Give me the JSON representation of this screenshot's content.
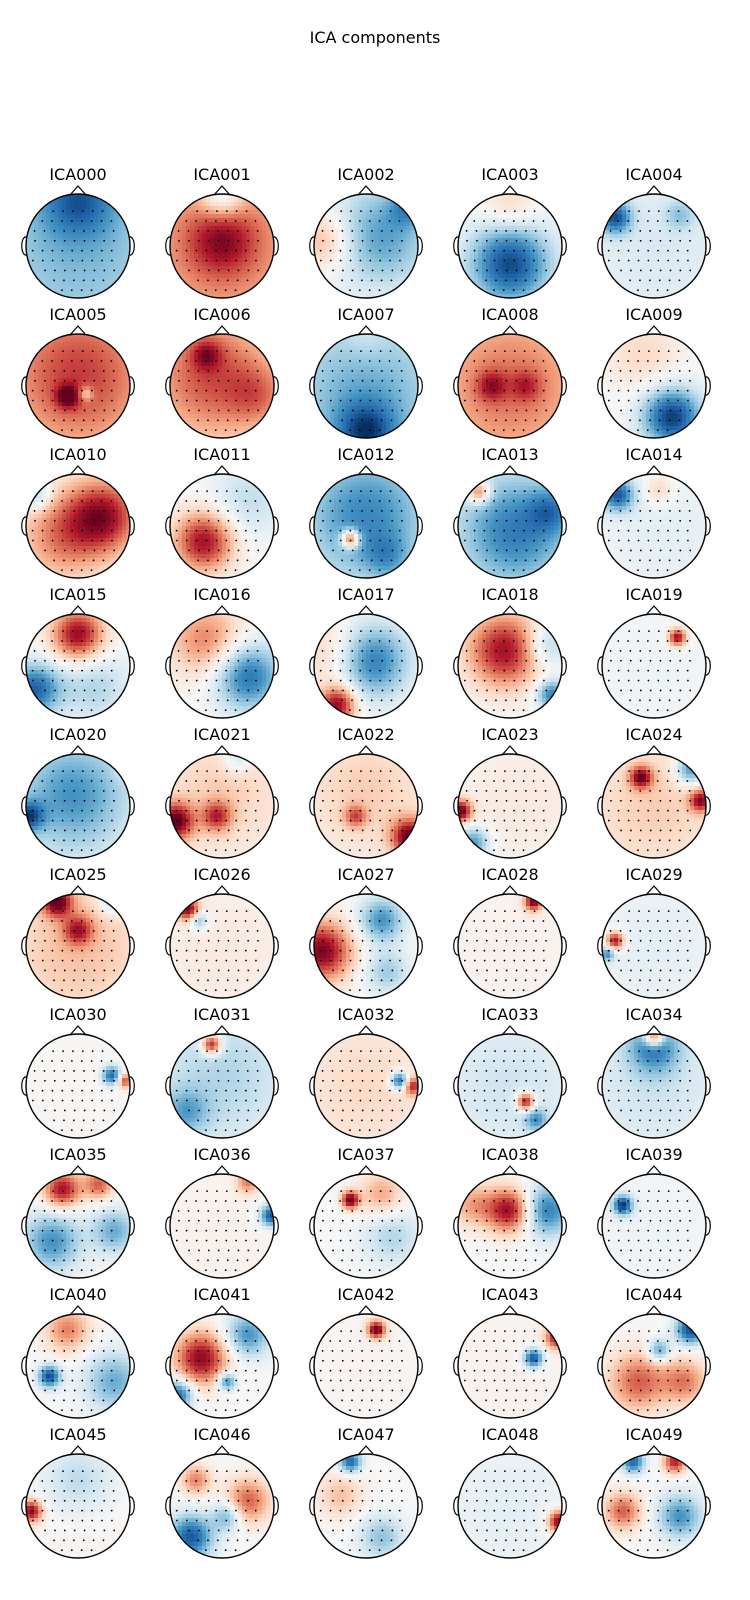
{
  "title": "ICA components",
  "colormap": {
    "negative": "#08306b",
    "neutral": "#f7f7f7",
    "positive": "#67000d",
    "outline": "#000000"
  },
  "components": [
    {
      "label": "ICA000",
      "blobs": [
        {
          "u": 0,
          "v": 0,
          "s": 1.6,
          "a": -0.45
        },
        {
          "u": 0,
          "v": 0.9,
          "s": 0.5,
          "a": -0.5
        }
      ]
    },
    {
      "label": "ICA001",
      "blobs": [
        {
          "u": 0,
          "v": 0,
          "s": 1.6,
          "a": 0.5
        },
        {
          "u": 0,
          "v": 0.1,
          "s": 0.45,
          "a": 0.45
        },
        {
          "u": 0,
          "v": 0.95,
          "s": 0.3,
          "a": -0.5
        }
      ]
    },
    {
      "label": "ICA002",
      "blobs": [
        {
          "u": 0.3,
          "v": 0.2,
          "s": 0.7,
          "a": -0.55
        },
        {
          "u": 0.8,
          "v": 0.75,
          "s": 0.25,
          "a": -0.4
        },
        {
          "u": -0.8,
          "v": 0.1,
          "s": 0.4,
          "a": 0.4
        }
      ]
    },
    {
      "label": "ICA003",
      "blobs": [
        {
          "u": 0,
          "v": -0.35,
          "s": 0.55,
          "a": -0.9
        },
        {
          "u": 0,
          "v": 0.75,
          "s": 0.35,
          "a": 0.25
        }
      ]
    },
    {
      "label": "ICA004",
      "blobs": [
        {
          "u": -0.75,
          "v": 0.55,
          "s": 0.22,
          "a": -0.8
        },
        {
          "u": 0.1,
          "v": 0,
          "s": 1.2,
          "a": -0.15
        },
        {
          "u": 0.5,
          "v": 0.6,
          "s": 0.2,
          "a": -0.3
        }
      ]
    },
    {
      "label": "ICA005",
      "blobs": [
        {
          "u": 0,
          "v": 0.2,
          "s": 1.1,
          "a": 0.7
        },
        {
          "u": -0.2,
          "v": -0.2,
          "s": 0.15,
          "a": 0.6
        },
        {
          "u": 0.15,
          "v": -0.15,
          "s": 0.1,
          "a": -0.4
        }
      ]
    },
    {
      "label": "ICA006",
      "blobs": [
        {
          "u": -0.2,
          "v": 0.2,
          "s": 0.9,
          "a": 0.65
        },
        {
          "u": 0.7,
          "v": -0.2,
          "s": 0.4,
          "a": 0.3
        },
        {
          "u": -0.3,
          "v": 0.6,
          "s": 0.2,
          "a": 0.4
        }
      ]
    },
    {
      "label": "ICA007",
      "blobs": [
        {
          "u": 0,
          "v": -0.2,
          "s": 1.2,
          "a": -0.5
        },
        {
          "u": 0,
          "v": -0.9,
          "s": 0.4,
          "a": -0.6
        },
        {
          "u": 0,
          "v": 0.9,
          "s": 0.3,
          "a": 0.1
        }
      ]
    },
    {
      "label": "ICA008",
      "blobs": [
        {
          "u": 0,
          "v": 0,
          "s": 1.2,
          "a": 0.55
        },
        {
          "u": -0.35,
          "v": 0,
          "s": 0.2,
          "a": 0.4
        },
        {
          "u": 0.3,
          "v": 0,
          "s": 0.2,
          "a": 0.3
        }
      ]
    },
    {
      "label": "ICA009",
      "blobs": [
        {
          "u": 0.35,
          "v": -0.6,
          "s": 0.4,
          "a": -0.95
        },
        {
          "u": -0.2,
          "v": 0.6,
          "s": 0.5,
          "a": 0.2
        }
      ]
    },
    {
      "label": "ICA010",
      "blobs": [
        {
          "u": 0.5,
          "v": 0.2,
          "s": 0.5,
          "a": 0.8
        },
        {
          "u": -0.3,
          "v": -0.2,
          "s": 0.6,
          "a": 0.5
        },
        {
          "u": -0.8,
          "v": 0.6,
          "s": 0.2,
          "a": -0.4
        }
      ]
    },
    {
      "label": "ICA011",
      "blobs": [
        {
          "u": -0.35,
          "v": -0.3,
          "s": 0.4,
          "a": 0.85
        },
        {
          "u": 0.5,
          "v": 0.5,
          "s": 0.5,
          "a": -0.25
        }
      ]
    },
    {
      "label": "ICA012",
      "blobs": [
        {
          "u": 0,
          "v": 0.2,
          "s": 0.9,
          "a": -0.65
        },
        {
          "u": -0.3,
          "v": -0.25,
          "s": 0.12,
          "a": 1.0
        },
        {
          "u": 0.4,
          "v": -0.6,
          "s": 0.3,
          "a": -0.3
        }
      ]
    },
    {
      "label": "ICA013",
      "blobs": [
        {
          "u": 0.1,
          "v": -0.1,
          "s": 0.8,
          "a": -0.7
        },
        {
          "u": -0.6,
          "v": 0.65,
          "s": 0.15,
          "a": 0.7
        },
        {
          "u": 0.8,
          "v": 0.3,
          "s": 0.3,
          "a": -0.4
        }
      ]
    },
    {
      "label": "ICA014",
      "blobs": [
        {
          "u": -0.7,
          "v": 0.6,
          "s": 0.22,
          "a": -0.8
        },
        {
          "u": 0.2,
          "v": -0.1,
          "s": 1.0,
          "a": -0.1
        },
        {
          "u": 0.1,
          "v": 0.7,
          "s": 0.2,
          "a": 0.25
        }
      ]
    },
    {
      "label": "ICA015",
      "blobs": [
        {
          "u": 0,
          "v": 0.6,
          "s": 0.35,
          "a": 0.9
        },
        {
          "u": -0.85,
          "v": -0.45,
          "s": 0.35,
          "a": -0.8
        },
        {
          "u": 0.3,
          "v": -0.4,
          "s": 0.5,
          "a": -0.3
        }
      ]
    },
    {
      "label": "ICA016",
      "blobs": [
        {
          "u": 0.5,
          "v": -0.2,
          "s": 0.45,
          "a": -0.75
        },
        {
          "u": -0.3,
          "v": 0.5,
          "s": 0.5,
          "a": 0.5
        }
      ]
    },
    {
      "label": "ICA017",
      "blobs": [
        {
          "u": 0.1,
          "v": 0.1,
          "s": 0.5,
          "a": -0.75
        },
        {
          "u": -0.55,
          "v": -0.75,
          "s": 0.25,
          "a": 0.9
        },
        {
          "u": -0.6,
          "v": 0.2,
          "s": 0.5,
          "a": 0.3
        }
      ]
    },
    {
      "label": "ICA018",
      "blobs": [
        {
          "u": -0.1,
          "v": 0.3,
          "s": 0.5,
          "a": 0.85
        },
        {
          "u": 0.8,
          "v": -0.55,
          "s": 0.2,
          "a": -0.7
        },
        {
          "u": 0.7,
          "v": 0.4,
          "s": 0.3,
          "a": -0.4
        }
      ]
    },
    {
      "label": "ICA019",
      "blobs": [
        {
          "u": 0.45,
          "v": 0.55,
          "s": 0.12,
          "a": 0.9
        },
        {
          "u": 0,
          "v": 0,
          "s": 1.0,
          "a": -0.05
        }
      ]
    },
    {
      "label": "ICA020",
      "blobs": [
        {
          "u": -0.1,
          "v": 0.2,
          "s": 0.8,
          "a": -0.6
        },
        {
          "u": -0.95,
          "v": -0.2,
          "s": 0.2,
          "a": -0.7
        },
        {
          "u": 0.9,
          "v": 0.75,
          "s": 0.15,
          "a": 0.2
        }
      ]
    },
    {
      "label": "ICA021",
      "blobs": [
        {
          "u": -0.9,
          "v": -0.3,
          "s": 0.25,
          "a": 0.95
        },
        {
          "u": -0.1,
          "v": -0.2,
          "s": 0.2,
          "a": 0.6
        },
        {
          "u": 0,
          "v": 0.3,
          "s": 0.9,
          "a": 0.25
        },
        {
          "u": 0.3,
          "v": 0.9,
          "s": 0.2,
          "a": -0.3
        }
      ]
    },
    {
      "label": "ICA022",
      "blobs": [
        {
          "u": 0.85,
          "v": -0.6,
          "s": 0.25,
          "a": 0.95
        },
        {
          "u": -0.2,
          "v": -0.2,
          "s": 0.15,
          "a": 0.5
        },
        {
          "u": 0,
          "v": 0.3,
          "s": 0.9,
          "a": 0.25
        }
      ]
    },
    {
      "label": "ICA023",
      "blobs": [
        {
          "u": -0.95,
          "v": -0.1,
          "s": 0.15,
          "a": 1.0
        },
        {
          "u": -0.7,
          "v": -0.7,
          "s": 0.2,
          "a": -0.6
        },
        {
          "u": 0.2,
          "v": 0.1,
          "s": 0.9,
          "a": 0.1
        }
      ]
    },
    {
      "label": "ICA024",
      "blobs": [
        {
          "u": -0.25,
          "v": 0.55,
          "s": 0.15,
          "a": 0.85
        },
        {
          "u": 0.7,
          "v": 0.7,
          "s": 0.2,
          "a": -0.7
        },
        {
          "u": 0.9,
          "v": 0.1,
          "s": 0.15,
          "a": 0.8
        },
        {
          "u": 0,
          "v": 0,
          "s": 1.0,
          "a": 0.25
        }
      ]
    },
    {
      "label": "ICA025",
      "blobs": [
        {
          "u": -0.4,
          "v": 0.85,
          "s": 0.2,
          "a": 0.9
        },
        {
          "u": 0.7,
          "v": 0.9,
          "s": 0.2,
          "a": -0.5
        },
        {
          "u": 0,
          "v": 0.3,
          "s": 0.2,
          "a": 0.6
        },
        {
          "u": 0,
          "v": 0,
          "s": 1.1,
          "a": 0.3
        }
      ]
    },
    {
      "label": "ICA026",
      "blobs": [
        {
          "u": -0.65,
          "v": 0.7,
          "s": 0.15,
          "a": 0.9
        },
        {
          "u": -0.45,
          "v": 0.5,
          "s": 0.12,
          "a": -0.5
        },
        {
          "u": 0,
          "v": -0.1,
          "s": 1.0,
          "a": 0.1
        }
      ]
    },
    {
      "label": "ICA027",
      "blobs": [
        {
          "u": -0.85,
          "v": -0.1,
          "s": 0.4,
          "a": 0.95
        },
        {
          "u": 0.3,
          "v": 0.5,
          "s": 0.3,
          "a": -0.6
        },
        {
          "u": 0.4,
          "v": -0.5,
          "s": 0.3,
          "a": -0.35
        }
      ]
    },
    {
      "label": "ICA028",
      "blobs": [
        {
          "u": 0.45,
          "v": 0.85,
          "s": 0.12,
          "a": 0.95
        },
        {
          "u": 0,
          "v": 0,
          "s": 1.2,
          "a": 0.05
        }
      ]
    },
    {
      "label": "ICA029",
      "blobs": [
        {
          "u": -0.75,
          "v": 0.1,
          "s": 0.12,
          "a": 0.9
        },
        {
          "u": -0.9,
          "v": -0.15,
          "s": 0.1,
          "a": -0.6
        },
        {
          "u": 0,
          "v": 0,
          "s": 1.0,
          "a": -0.1
        }
      ]
    },
    {
      "label": "ICA030",
      "blobs": [
        {
          "u": 0.65,
          "v": 0.2,
          "s": 0.13,
          "a": -0.8
        },
        {
          "u": 0.9,
          "v": 0.1,
          "s": 0.1,
          "a": 0.7
        },
        {
          "u": 0,
          "v": 0,
          "s": 1.0,
          "a": 0.02
        }
      ]
    },
    {
      "label": "ICA031",
      "blobs": [
        {
          "u": -0.2,
          "v": 0.8,
          "s": 0.13,
          "a": 0.95
        },
        {
          "u": 0,
          "v": 0.2,
          "s": 1.0,
          "a": -0.3
        },
        {
          "u": -0.7,
          "v": -0.5,
          "s": 0.3,
          "a": -0.4
        }
      ]
    },
    {
      "label": "ICA032",
      "blobs": [
        {
          "u": 0.65,
          "v": 0.1,
          "s": 0.12,
          "a": -0.9
        },
        {
          "u": 0.9,
          "v": 0,
          "s": 0.12,
          "a": 0.7
        },
        {
          "u": 0,
          "v": 0,
          "s": 1.0,
          "a": 0.2
        }
      ]
    },
    {
      "label": "ICA033",
      "blobs": [
        {
          "u": 0.3,
          "v": -0.3,
          "s": 0.12,
          "a": 0.95
        },
        {
          "u": 0.5,
          "v": -0.65,
          "s": 0.15,
          "a": -0.5
        },
        {
          "u": 0,
          "v": 0,
          "s": 1.0,
          "a": -0.2
        }
      ]
    },
    {
      "label": "ICA034",
      "blobs": [
        {
          "u": 0,
          "v": 0.95,
          "s": 0.13,
          "a": 1.0
        },
        {
          "u": 0,
          "v": 0.75,
          "s": 0.35,
          "a": -0.6
        },
        {
          "u": 0,
          "v": 0,
          "s": 1.0,
          "a": -0.2
        }
      ]
    },
    {
      "label": "ICA035",
      "blobs": [
        {
          "u": -0.3,
          "v": 0.7,
          "s": 0.25,
          "a": 0.85
        },
        {
          "u": 0.4,
          "v": 0.8,
          "s": 0.2,
          "a": 0.6
        },
        {
          "u": -0.5,
          "v": -0.3,
          "s": 0.4,
          "a": -0.6
        },
        {
          "u": 0.7,
          "v": -0.1,
          "s": 0.3,
          "a": -0.5
        }
      ]
    },
    {
      "label": "ICA036",
      "blobs": [
        {
          "u": 0.95,
          "v": 0.2,
          "s": 0.15,
          "a": -0.9
        },
        {
          "u": 0.5,
          "v": 0.85,
          "s": 0.15,
          "a": 0.5
        },
        {
          "u": 0,
          "v": 0,
          "s": 1.0,
          "a": 0.05
        }
      ]
    },
    {
      "label": "ICA037",
      "blobs": [
        {
          "u": -0.3,
          "v": 0.5,
          "s": 0.12,
          "a": 1.0
        },
        {
          "u": 0.3,
          "v": 0.6,
          "s": 0.3,
          "a": 0.4
        },
        {
          "u": 0.5,
          "v": -0.2,
          "s": 0.4,
          "a": -0.3
        }
      ]
    },
    {
      "label": "ICA038",
      "blobs": [
        {
          "u": 0,
          "v": 0.3,
          "s": 0.3,
          "a": 0.9
        },
        {
          "u": 0.7,
          "v": 0.3,
          "s": 0.35,
          "a": -0.7
        },
        {
          "u": -0.7,
          "v": 0.4,
          "s": 0.3,
          "a": 0.4
        }
      ]
    },
    {
      "label": "ICA039",
      "blobs": [
        {
          "u": -0.6,
          "v": 0.4,
          "s": 0.13,
          "a": -0.95
        },
        {
          "u": 0,
          "v": 0,
          "s": 1.0,
          "a": -0.05
        }
      ]
    },
    {
      "label": "ICA040",
      "blobs": [
        {
          "u": -0.55,
          "v": -0.2,
          "s": 0.15,
          "a": -0.9
        },
        {
          "u": 0.7,
          "v": -0.3,
          "s": 0.4,
          "a": -0.5
        },
        {
          "u": -0.2,
          "v": 0.7,
          "s": 0.3,
          "a": 0.5
        }
      ]
    },
    {
      "label": "ICA041",
      "blobs": [
        {
          "u": -0.4,
          "v": 0.15,
          "s": 0.35,
          "a": 0.9
        },
        {
          "u": 0.5,
          "v": 0.6,
          "s": 0.3,
          "a": -0.6
        },
        {
          "u": -0.85,
          "v": -0.55,
          "s": 0.2,
          "a": -0.8
        },
        {
          "u": 0.1,
          "v": -0.3,
          "s": 0.12,
          "a": -0.7
        }
      ]
    },
    {
      "label": "ICA042",
      "blobs": [
        {
          "u": 0.2,
          "v": 0.7,
          "s": 0.12,
          "a": 1.0
        },
        {
          "u": 0,
          "v": 0,
          "s": 1.0,
          "a": 0.03
        }
      ]
    },
    {
      "label": "ICA043",
      "blobs": [
        {
          "u": 0.45,
          "v": 0.15,
          "s": 0.13,
          "a": -0.9
        },
        {
          "u": 0.9,
          "v": 0.55,
          "s": 0.15,
          "a": 0.85
        },
        {
          "u": 0,
          "v": 0,
          "s": 1.0,
          "a": 0.05
        }
      ]
    },
    {
      "label": "ICA044",
      "blobs": [
        {
          "u": 0.7,
          "v": 0.7,
          "s": 0.2,
          "a": -0.9
        },
        {
          "u": -0.3,
          "v": -0.3,
          "s": 0.4,
          "a": 0.6
        },
        {
          "u": 0.1,
          "v": 0.3,
          "s": 0.15,
          "a": -0.6
        },
        {
          "u": 0.6,
          "v": -0.3,
          "s": 0.3,
          "a": 0.5
        }
      ]
    },
    {
      "label": "ICA045",
      "blobs": [
        {
          "u": -0.9,
          "v": -0.1,
          "s": 0.15,
          "a": 0.9
        },
        {
          "u": 0,
          "v": 0.5,
          "s": 0.5,
          "a": -0.3
        },
        {
          "u": 0,
          "v": 0,
          "s": 1.0,
          "a": 0.05
        }
      ]
    },
    {
      "label": "ICA046",
      "blobs": [
        {
          "u": -0.6,
          "v": -0.6,
          "s": 0.3,
          "a": -0.85
        },
        {
          "u": 0.5,
          "v": 0.1,
          "s": 0.3,
          "a": 0.6
        },
        {
          "u": -0.5,
          "v": 0.5,
          "s": 0.2,
          "a": 0.5
        },
        {
          "u": 0.1,
          "v": -0.2,
          "s": 0.2,
          "a": -0.5
        }
      ]
    },
    {
      "label": "ICA047",
      "blobs": [
        {
          "u": -0.3,
          "v": 0.85,
          "s": 0.15,
          "a": -0.8
        },
        {
          "u": 0.3,
          "v": -0.6,
          "s": 0.3,
          "a": -0.4
        },
        {
          "u": -0.5,
          "v": 0.2,
          "s": 0.3,
          "a": 0.3
        }
      ]
    },
    {
      "label": "ICA048",
      "blobs": [
        {
          "u": 0.95,
          "v": -0.3,
          "s": 0.15,
          "a": 1.0
        },
        {
          "u": 0,
          "v": 0,
          "s": 1.0,
          "a": -0.1
        }
      ]
    },
    {
      "label": "ICA049",
      "blobs": [
        {
          "u": -0.4,
          "v": 0.85,
          "s": 0.15,
          "a": -0.8
        },
        {
          "u": 0.4,
          "v": 0.85,
          "s": 0.15,
          "a": 0.8
        },
        {
          "u": -0.6,
          "v": -0.1,
          "s": 0.25,
          "a": 0.6
        },
        {
          "u": 0.5,
          "v": -0.2,
          "s": 0.3,
          "a": -0.6
        }
      ]
    }
  ]
}
